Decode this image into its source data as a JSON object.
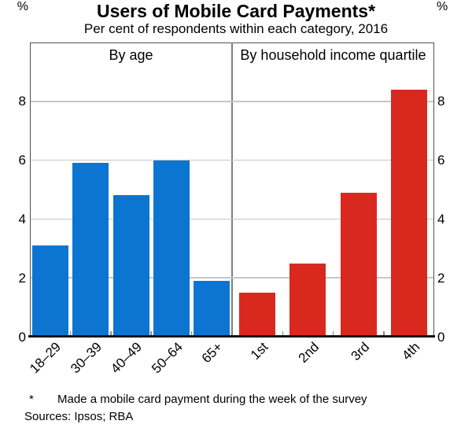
{
  "title": "Users of Mobile Card Payments*",
  "subtitle": "Per cent of respondents within each category, 2016",
  "footnotes": {
    "marker": "*",
    "note": "Made a mobile card payment during the week of the survey",
    "sources": "Sources: Ipsos; RBA"
  },
  "chart_data": {
    "type": "bar",
    "title": "Users of Mobile Card Payments*",
    "subtitle": "Per cent of respondents within each category, 2016",
    "unit": "%",
    "ylim": [
      0,
      10
    ],
    "yticks": [
      0,
      2,
      4,
      6,
      8
    ],
    "grid": true,
    "gridline_color": "#c7c7c7",
    "panels": [
      {
        "label": "By age",
        "color": "#0c75d2",
        "categories": [
          "18–29",
          "30–39",
          "40–49",
          "50–64",
          "65+"
        ],
        "values": [
          3.1,
          5.9,
          4.8,
          6.0,
          1.9
        ]
      },
      {
        "label": "By household income quartile",
        "color": "#d9291f",
        "categories": [
          "1st",
          "2nd",
          "3rd",
          "4th"
        ],
        "values": [
          1.5,
          2.5,
          4.9,
          8.4
        ]
      }
    ]
  }
}
